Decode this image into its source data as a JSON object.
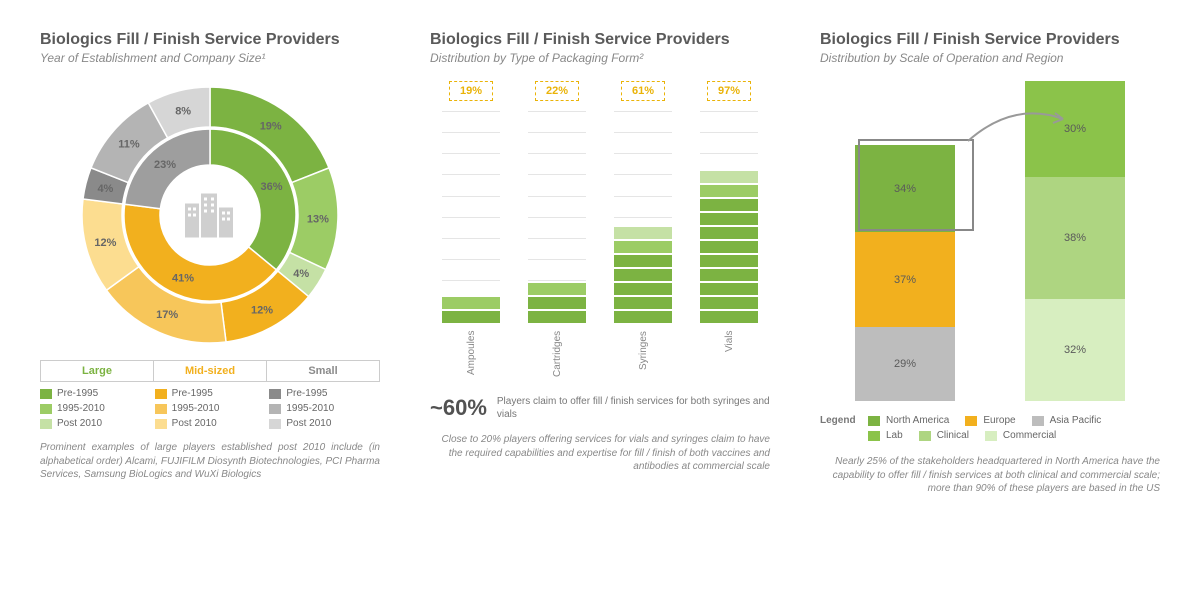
{
  "panel1": {
    "title": "Biologics Fill / Finish Service Providers",
    "subtitle": "Year of Establishment and Company Size¹",
    "donut": {
      "inner": [
        {
          "label": "36%",
          "value": 36,
          "color": "#7cb342"
        },
        {
          "label": "41%",
          "value": 41,
          "color": "#f2b01e"
        },
        {
          "label": "23%",
          "value": 23,
          "color": "#9e9e9e"
        }
      ],
      "outer": [
        {
          "label": "19%",
          "value": 19,
          "color": "#7cb342"
        },
        {
          "label": "13%",
          "value": 13,
          "color": "#9ccc65"
        },
        {
          "label": "4%",
          "value": 4,
          "color": "#c5e1a5"
        },
        {
          "label": "12%",
          "value": 12,
          "color": "#f2b01e"
        },
        {
          "label": "17%",
          "value": 17,
          "color": "#f7c65a"
        },
        {
          "label": "12%",
          "value": 12,
          "color": "#fcdd90"
        },
        {
          "label": "4%",
          "value": 4,
          "color": "#8a8a8a"
        },
        {
          "label": "11%",
          "value": 11,
          "color": "#b4b4b4"
        },
        {
          "label": "8%",
          "value": 8,
          "color": "#d6d6d6"
        }
      ],
      "center_icon": "buildings"
    },
    "size_headers": [
      {
        "label": "Large",
        "color": "#7cb342"
      },
      {
        "label": "Mid-sized",
        "color": "#f2b01e"
      },
      {
        "label": "Small",
        "color": "#8a8a8a"
      }
    ],
    "periods": [
      "Pre-1995",
      "1995-2010",
      "Post 2010"
    ],
    "legend_colors": {
      "Large": [
        "#7cb342",
        "#9ccc65",
        "#c5e1a5"
      ],
      "Mid-sized": [
        "#f2b01e",
        "#f7c65a",
        "#fcdd90"
      ],
      "Small": [
        "#8a8a8a",
        "#b4b4b4",
        "#d6d6d6"
      ]
    },
    "footnote": "Prominent examples of large players established post 2010 include (in alphabetical order) Alcami, FUJIFILM Diosynth Biotechnologies, PCI Pharma Services, Samsung BioLogics and WuXi Biologics"
  },
  "panel2": {
    "title": "Biologics Fill / Finish Service Providers",
    "subtitle": "Distribution by Type of Packaging Form²",
    "categories": [
      {
        "name": "Ampoules",
        "pct": "19%",
        "segments": [
          {
            "h": 12,
            "c": "#7cb342"
          },
          {
            "h": 12,
            "c": "#9ccc65"
          }
        ]
      },
      {
        "name": "Cartridges",
        "pct": "22%",
        "segments": [
          {
            "h": 12,
            "c": "#7cb342"
          },
          {
            "h": 12,
            "c": "#7cb342"
          },
          {
            "h": 12,
            "c": "#9ccc65"
          }
        ]
      },
      {
        "name": "Syringes",
        "pct": "61%",
        "segments": [
          {
            "h": 12,
            "c": "#7cb342"
          },
          {
            "h": 12,
            "c": "#7cb342"
          },
          {
            "h": 12,
            "c": "#7cb342"
          },
          {
            "h": 12,
            "c": "#7cb342"
          },
          {
            "h": 12,
            "c": "#7cb342"
          },
          {
            "h": 12,
            "c": "#9ccc65"
          },
          {
            "h": 12,
            "c": "#c5e1a5"
          }
        ]
      },
      {
        "name": "Vials",
        "pct": "97%",
        "segments": [
          {
            "h": 12,
            "c": "#7cb342"
          },
          {
            "h": 12,
            "c": "#7cb342"
          },
          {
            "h": 12,
            "c": "#7cb342"
          },
          {
            "h": 12,
            "c": "#7cb342"
          },
          {
            "h": 12,
            "c": "#7cb342"
          },
          {
            "h": 12,
            "c": "#7cb342"
          },
          {
            "h": 12,
            "c": "#7cb342"
          },
          {
            "h": 12,
            "c": "#7cb342"
          },
          {
            "h": 12,
            "c": "#7cb342"
          },
          {
            "h": 12,
            "c": "#9ccc65"
          },
          {
            "h": 12,
            "c": "#c5e1a5"
          }
        ]
      }
    ],
    "gridlines": 11,
    "sixty_pct": "~60%",
    "sixty_text": "Players claim to offer fill / finish services for both syringes and vials",
    "footnote": "Close to 20% players offering services for vials and syringes claim to have the required capabilities and expertise for fill / finish of both vaccines and antibodies at commercial scale"
  },
  "panel3": {
    "title": "Biologics Fill / Finish Service Providers",
    "subtitle": "Distribution by Scale of Operation and Region",
    "stack_left": {
      "height_pct": 80,
      "segments": [
        {
          "label": "34%",
          "value": 34,
          "color": "#7cb342"
        },
        {
          "label": "37%",
          "value": 37,
          "color": "#f2b01e"
        },
        {
          "label": "29%",
          "value": 29,
          "color": "#bdbdbd"
        }
      ]
    },
    "stack_right": {
      "height_pct": 100,
      "segments": [
        {
          "label": "30%",
          "value": 30,
          "color": "#8bc34a"
        },
        {
          "label": "38%",
          "value": 38,
          "color": "#aed581"
        },
        {
          "label": "32%",
          "value": 32,
          "color": "#d7eec0"
        }
      ]
    },
    "legend": {
      "label": "Legend",
      "row1": [
        {
          "label": "North America",
          "color": "#7cb342"
        },
        {
          "label": "Europe",
          "color": "#f2b01e"
        },
        {
          "label": "Asia Pacific",
          "color": "#bdbdbd"
        }
      ],
      "row2": [
        {
          "label": "Lab",
          "color": "#8bc34a"
        },
        {
          "label": "Clinical",
          "color": "#aed581"
        },
        {
          "label": "Commercial",
          "color": "#d7eec0"
        }
      ]
    },
    "footnote": "Nearly 25% of the stakeholders headquartered in North America have the capability to offer fill / finish services at both clinical and commercial scale; more than 90% of these players are based in the US"
  }
}
